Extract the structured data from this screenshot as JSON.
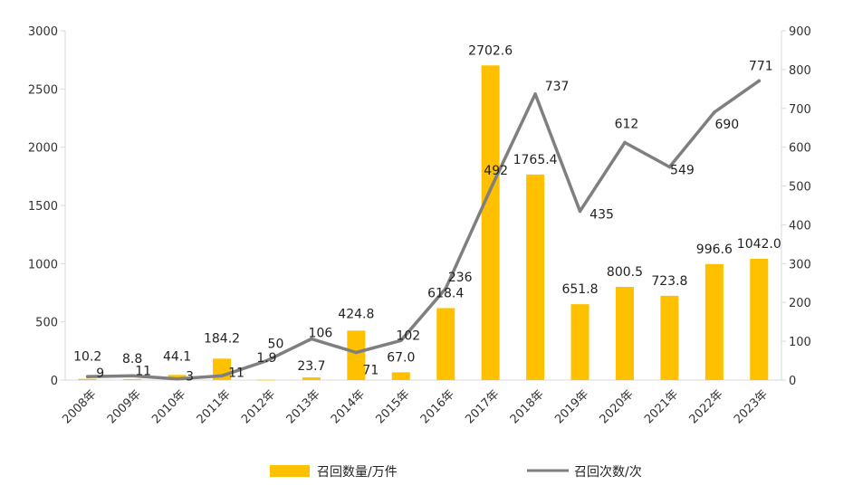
{
  "chart_data": {
    "type": "bar",
    "categories": [
      "2008年",
      "2009年",
      "2010年",
      "2011年",
      "2012年",
      "2013年",
      "2014年",
      "2015年",
      "2016年",
      "2017年",
      "2018年",
      "2019年",
      "2020年",
      "2021年",
      "2022年",
      "2023年"
    ],
    "series": [
      {
        "name": "召回数量/万件",
        "type": "bar",
        "axis": "left",
        "color": "#FFC000",
        "values": [
          10.2,
          8.8,
          44.1,
          184.2,
          1.9,
          23.7,
          424.8,
          67.0,
          618.4,
          2702.6,
          1765.4,
          651.8,
          800.5,
          723.8,
          996.6,
          1042.0
        ],
        "labels": [
          "10.2",
          "8.8",
          "44.1",
          "184.2",
          "1.9",
          "23.7",
          "424.8",
          "67.0",
          "618.4",
          "2702.6",
          "1765.4",
          "651.8",
          "800.5",
          "723.8",
          "996.6",
          "1042.0"
        ]
      },
      {
        "name": "召回次数/次",
        "type": "line",
        "axis": "right",
        "color": "#7F7F7F",
        "values": [
          9,
          11,
          3,
          11,
          50,
          106,
          71,
          102,
          236,
          492,
          737,
          435,
          612,
          549,
          690,
          771
        ],
        "labels": [
          "9",
          "11",
          "3",
          "11",
          "50",
          "106",
          "71",
          "102",
          "236",
          "492",
          "737",
          "435",
          "612",
          "549",
          "690",
          "771"
        ]
      }
    ],
    "y_left": {
      "range": [
        0,
        3000
      ],
      "ticks": [
        "0",
        "500",
        "1000",
        "1500",
        "2000",
        "2500",
        "3000"
      ]
    },
    "y_right": {
      "range": [
        0,
        900
      ],
      "ticks": [
        "0",
        "100",
        "200",
        "300",
        "400",
        "500",
        "600",
        "700",
        "800",
        "900"
      ]
    },
    "grid": false,
    "legend_position": "bottom"
  }
}
